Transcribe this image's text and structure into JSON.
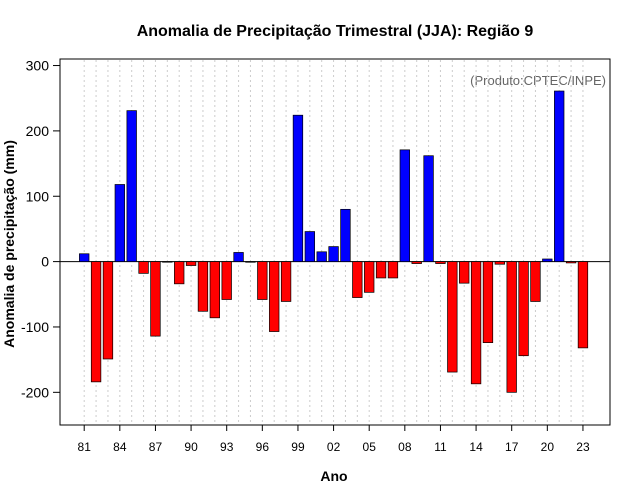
{
  "chart_data": {
    "type": "bar",
    "title": "Anomalia de Precipitação Trimestral (JJA): Região 9",
    "xlabel": "Ano",
    "ylabel": "Anomalia de precipitação (mm)",
    "annotation": "(Produto:CPTEC/INPE)",
    "ylim": [
      -250,
      310
    ],
    "yticks": [
      -200,
      -100,
      0,
      100,
      200,
      300
    ],
    "ytick_labels": [
      "-200",
      "-100",
      "0",
      "100",
      "200",
      "300"
    ],
    "x_first_year": 1981,
    "x_last_year": 2023,
    "xtick_labels": [
      {
        "year": 1981,
        "label": "81"
      },
      {
        "year": 1984,
        "label": "84"
      },
      {
        "year": 1987,
        "label": "87"
      },
      {
        "year": 1990,
        "label": "90"
      },
      {
        "year": 1993,
        "label": "93"
      },
      {
        "year": 1996,
        "label": "96"
      },
      {
        "year": 1999,
        "label": "99"
      },
      {
        "year": 2002,
        "label": "02"
      },
      {
        "year": 2005,
        "label": "05"
      },
      {
        "year": 2008,
        "label": "08"
      },
      {
        "year": 2011,
        "label": "11"
      },
      {
        "year": 2014,
        "label": "14"
      },
      {
        "year": 2017,
        "label": "17"
      },
      {
        "year": 2020,
        "label": "20"
      },
      {
        "year": 2023,
        "label": "23"
      }
    ],
    "bars": [
      {
        "year": 1981,
        "value": 12
      },
      {
        "year": 1982,
        "value": -184
      },
      {
        "year": 1983,
        "value": -149
      },
      {
        "year": 1984,
        "value": 118
      },
      {
        "year": 1985,
        "value": 231
      },
      {
        "year": 1986,
        "value": -18
      },
      {
        "year": 1987,
        "value": -114
      },
      {
        "year": 1988,
        "value": 0
      },
      {
        "year": 1989,
        "value": -34
      },
      {
        "year": 1990,
        "value": -6
      },
      {
        "year": 1991,
        "value": -76
      },
      {
        "year": 1992,
        "value": -86
      },
      {
        "year": 1993,
        "value": -58
      },
      {
        "year": 1994,
        "value": 14
      },
      {
        "year": 1995,
        "value": -1
      },
      {
        "year": 1996,
        "value": -58
      },
      {
        "year": 1997,
        "value": -107
      },
      {
        "year": 1998,
        "value": -61
      },
      {
        "year": 1999,
        "value": 224
      },
      {
        "year": 2000,
        "value": 46
      },
      {
        "year": 2001,
        "value": 15
      },
      {
        "year": 2002,
        "value": 23
      },
      {
        "year": 2003,
        "value": 80
      },
      {
        "year": 2004,
        "value": -55
      },
      {
        "year": 2005,
        "value": -47
      },
      {
        "year": 2006,
        "value": -25
      },
      {
        "year": 2007,
        "value": -25
      },
      {
        "year": 2008,
        "value": 171
      },
      {
        "year": 2009,
        "value": -3
      },
      {
        "year": 2010,
        "value": 162
      },
      {
        "year": 2011,
        "value": -3
      },
      {
        "year": 2012,
        "value": -169
      },
      {
        "year": 2013,
        "value": -33
      },
      {
        "year": 2014,
        "value": -187
      },
      {
        "year": 2015,
        "value": -124
      },
      {
        "year": 2016,
        "value": -4
      },
      {
        "year": 2017,
        "value": -200
      },
      {
        "year": 2018,
        "value": -144
      },
      {
        "year": 2019,
        "value": -61
      },
      {
        "year": 2020,
        "value": 4
      },
      {
        "year": 2021,
        "value": 261
      },
      {
        "year": 2022,
        "value": -2
      },
      {
        "year": 2023,
        "value": -132
      }
    ],
    "colors": {
      "positive": "#0000ff",
      "negative": "#ff0000",
      "bar_border": "#000000",
      "grid": "#cccccc"
    },
    "grid": "vertical-dotted",
    "legend": "none"
  }
}
